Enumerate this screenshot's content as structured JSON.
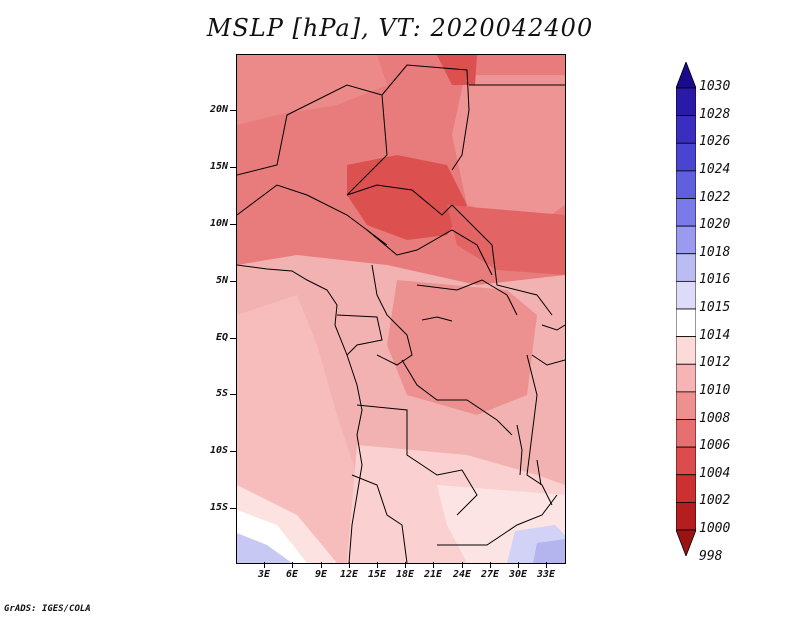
{
  "title": "MSLP [hPa], VT: 2020042400",
  "footer": "GrADS: IGES/COLA",
  "lat_labels": [
    "20N",
    "15N",
    "10N",
    "5N",
    "EQ",
    "5S",
    "10S",
    "15S"
  ],
  "lon_labels": [
    "3E",
    "6E",
    "9E",
    "12E",
    "15E",
    "18E",
    "21E",
    "24E",
    "27E",
    "30E",
    "33E"
  ],
  "colorbar": {
    "levels": [
      "1030",
      "1028",
      "1026",
      "1024",
      "1022",
      "1020",
      "1018",
      "1016",
      "1015",
      "1014",
      "1012",
      "1010",
      "1008",
      "1006",
      "1004",
      "1002",
      "1000",
      "998"
    ],
    "colors": [
      "#1a0a8c",
      "#2a1aa8",
      "#3a2ec0",
      "#4a44d2",
      "#6060de",
      "#7a7ae8",
      "#9a9aee",
      "#bcbcf4",
      "#dcdcfa",
      "#ffffff",
      "#fcdada",
      "#f6b4b4",
      "#ee9090",
      "#e67070",
      "#dc4c4c",
      "#cc3030",
      "#b41e1e",
      "#9a1414"
    ]
  },
  "chart_data": {
    "type": "heatmap",
    "title": "MSLP [hPa], VT: 2020042400",
    "variable": "MSLP",
    "units": "hPa",
    "valid_time": "2020042400",
    "x_ticks": [
      "3E",
      "6E",
      "9E",
      "12E",
      "15E",
      "18E",
      "21E",
      "24E",
      "27E",
      "30E",
      "33E"
    ],
    "y_ticks": [
      "20N",
      "15N",
      "10N",
      "5N",
      "EQ",
      "5S",
      "10S",
      "15S"
    ],
    "xlim": [
      0,
      35
    ],
    "ylim": [
      -20,
      24
    ],
    "color_levels": [
      998,
      1000,
      1002,
      1004,
      1006,
      1008,
      1010,
      1012,
      1014,
      1015,
      1016,
      1018,
      1020,
      1022,
      1024,
      1026,
      1028,
      1030
    ]
  }
}
